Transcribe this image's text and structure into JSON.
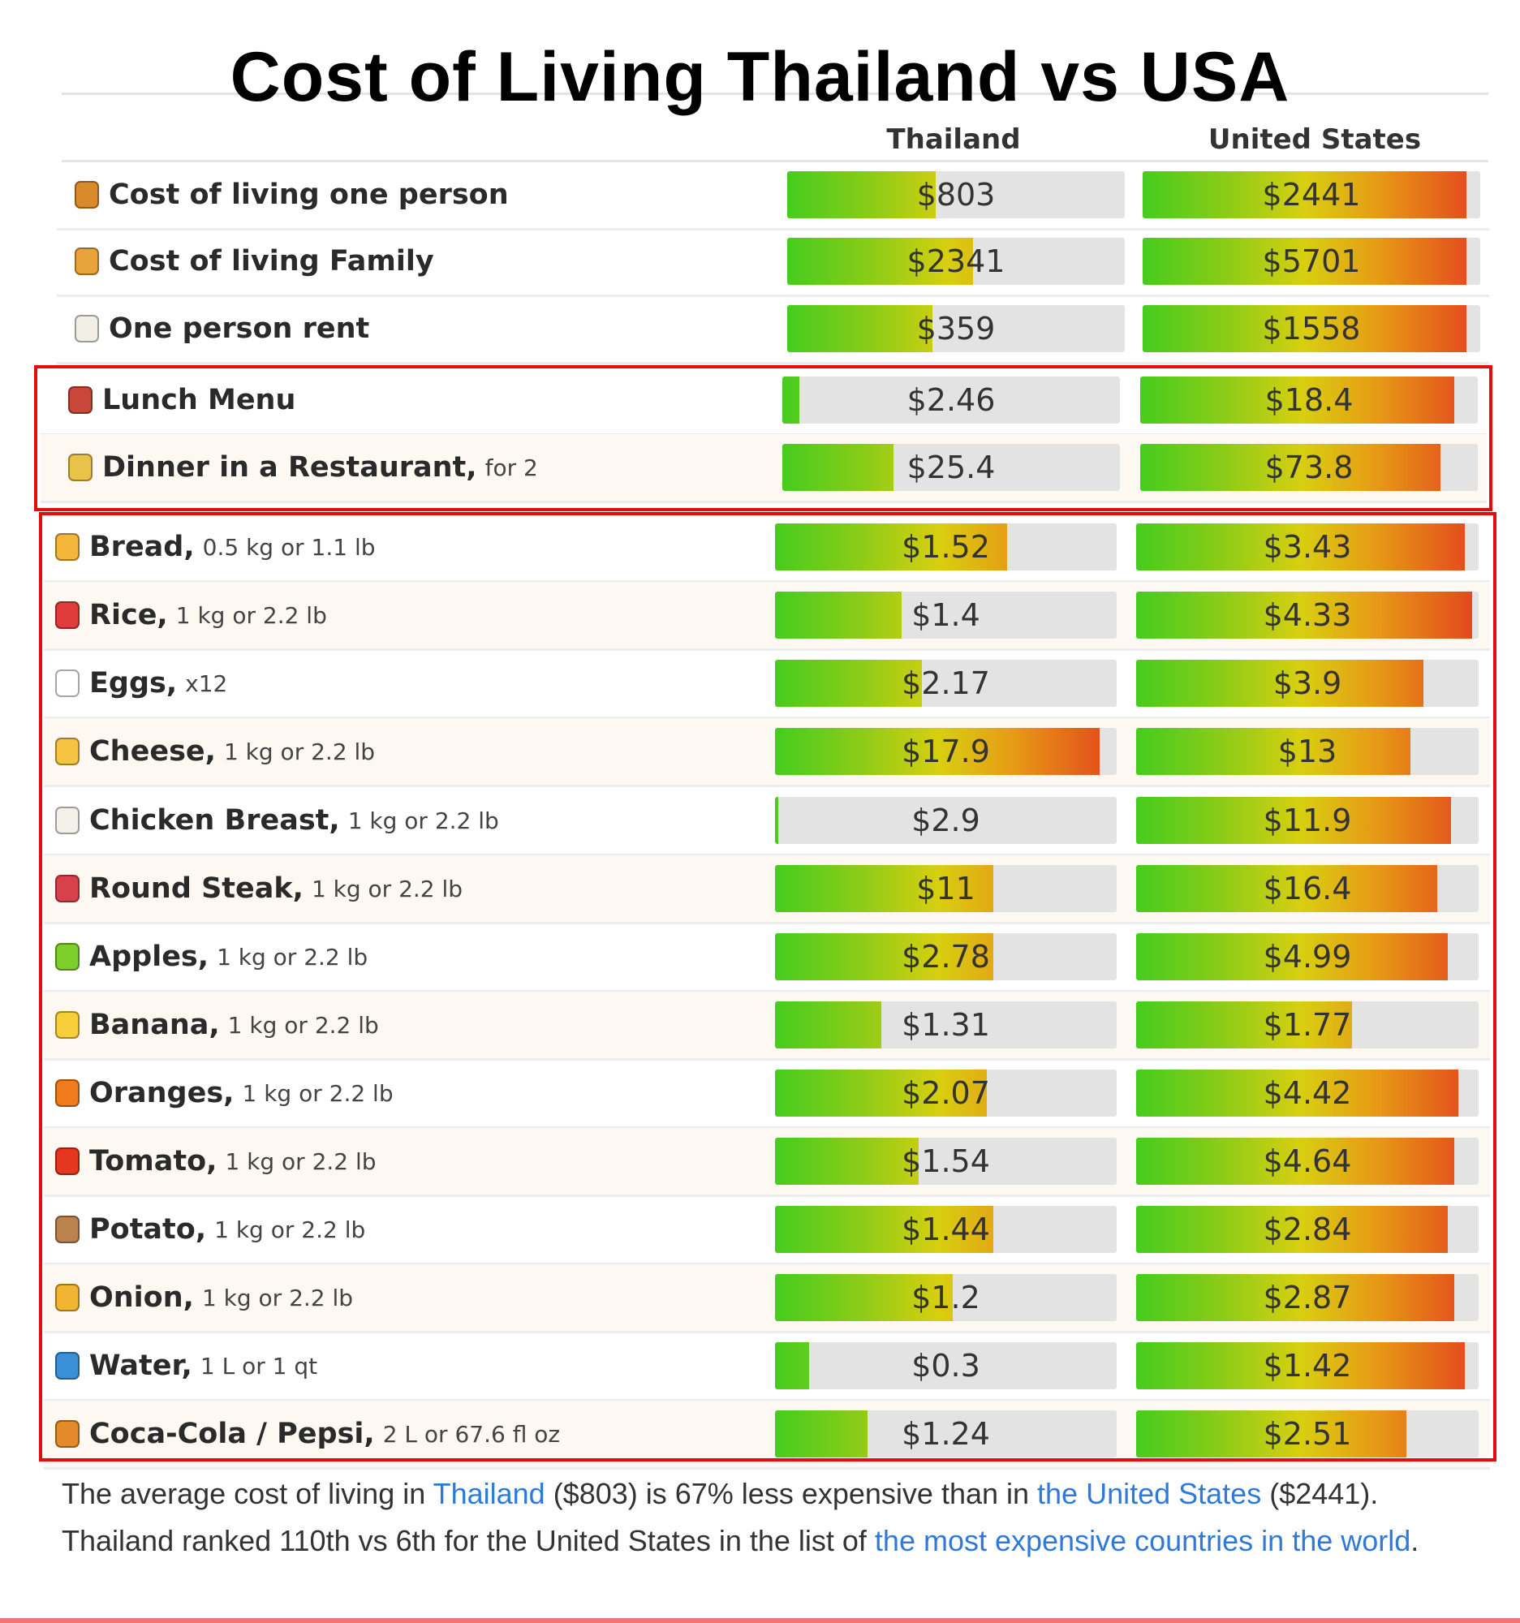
{
  "chart_data": {
    "type": "table",
    "title": "Cost of Living Thailand vs USA",
    "columns": [
      "Thailand",
      "United States"
    ],
    "colors": {
      "gradient_start": "#46cc1e",
      "gradient_mid": "#d8cf10",
      "gradient_end": "#e3431e",
      "track": "#e3e3e3",
      "highlight_box": "#e30d0d",
      "link": "#2f7ad8"
    },
    "rows": [
      {
        "label": "Cost of living one person",
        "unit": "",
        "icon": "person-icon",
        "icon_color": "#d98b2b",
        "th": "$803",
        "th_fill": 0.44,
        "us": "$2441",
        "us_fill": 0.96
      },
      {
        "label": "Cost of living Family",
        "unit": "",
        "icon": "family-icon",
        "icon_color": "#e8a33a",
        "th": "$2341",
        "th_fill": 0.55,
        "us": "$5701",
        "us_fill": 0.96
      },
      {
        "label": "One person rent",
        "unit": "",
        "icon": "house-icon",
        "icon_color": "#f2efe6",
        "th": "$359",
        "th_fill": 0.43,
        "us": "$1558",
        "us_fill": 0.96
      },
      {
        "label": "Lunch Menu",
        "unit": "",
        "icon": "bento-box-icon",
        "icon_color": "#c9473a",
        "th": "$2.46",
        "th_fill": 0.05,
        "us": "$18.4",
        "us_fill": 0.93
      },
      {
        "label": "Dinner in a Restaurant,",
        "unit": "for 2",
        "icon": "champagne-glasses-icon",
        "icon_color": "#e9c24a",
        "th": "$25.4",
        "th_fill": 0.33,
        "us": "$73.8",
        "us_fill": 0.89
      },
      {
        "label": "Bread,",
        "unit": "0.5 kg or 1.1 lb",
        "icon": "bread-icon",
        "icon_color": "#f3b63a",
        "th": "$1.52",
        "th_fill": 0.68,
        "us": "$3.43",
        "us_fill": 0.96
      },
      {
        "label": "Rice,",
        "unit": "1 kg or 2.2 lb",
        "icon": "rice-bowl-icon",
        "icon_color": "#e23b3b",
        "th": "$1.4",
        "th_fill": 0.37,
        "us": "$4.33",
        "us_fill": 0.98
      },
      {
        "label": "Eggs,",
        "unit": "x12",
        "icon": "egg-icon",
        "icon_color": "#ffffff",
        "th": "$2.17",
        "th_fill": 0.43,
        "us": "$3.9",
        "us_fill": 0.84
      },
      {
        "label": "Cheese,",
        "unit": "1 kg or 2.2 lb",
        "icon": "cheese-icon",
        "icon_color": "#f6c343",
        "th": "$17.9",
        "th_fill": 0.95,
        "us": "$13",
        "us_fill": 0.8
      },
      {
        "label": "Chicken Breast,",
        "unit": "1 kg or 2.2 lb",
        "icon": "chicken-icon",
        "icon_color": "#f3f0ea",
        "th": "$2.9",
        "th_fill": 0.01,
        "us": "$11.9",
        "us_fill": 0.92
      },
      {
        "label": "Round Steak,",
        "unit": "1 kg or 2.2 lb",
        "icon": "steak-icon",
        "icon_color": "#d9414a",
        "th": "$11",
        "th_fill": 0.64,
        "us": "$16.4",
        "us_fill": 0.88
      },
      {
        "label": "Apples,",
        "unit": "1 kg or 2.2 lb",
        "icon": "green-apple-icon",
        "icon_color": "#7fcf2c",
        "th": "$2.78",
        "th_fill": 0.64,
        "us": "$4.99",
        "us_fill": 0.91
      },
      {
        "label": "Banana,",
        "unit": "1 kg or 2.2 lb",
        "icon": "banana-icon",
        "icon_color": "#f6cf3b",
        "th": "$1.31",
        "th_fill": 0.31,
        "us": "$1.77",
        "us_fill": 0.63
      },
      {
        "label": "Oranges,",
        "unit": "1 kg or 2.2 lb",
        "icon": "orange-icon",
        "icon_color": "#f07b1d",
        "th": "$2.07",
        "th_fill": 0.62,
        "us": "$4.42",
        "us_fill": 0.94
      },
      {
        "label": "Tomato,",
        "unit": "1 kg or 2.2 lb",
        "icon": "tomato-icon",
        "icon_color": "#e5361f",
        "th": "$1.54",
        "th_fill": 0.42,
        "us": "$4.64",
        "us_fill": 0.93
      },
      {
        "label": "Potato,",
        "unit": "1 kg or 2.2 lb",
        "icon": "potato-icon",
        "icon_color": "#b9824f",
        "th": "$1.44",
        "th_fill": 0.64,
        "us": "$2.84",
        "us_fill": 0.91
      },
      {
        "label": "Onion,",
        "unit": "1 kg or 2.2 lb",
        "icon": "onion-icon",
        "icon_color": "#f2b531",
        "th": "$1.2",
        "th_fill": 0.52,
        "us": "$2.87",
        "us_fill": 0.93
      },
      {
        "label": "Water,",
        "unit": "1 L or 1 qt",
        "icon": "water-wave-icon",
        "icon_color": "#3a8fd8",
        "th": "$0.3",
        "th_fill": 0.1,
        "us": "$1.42",
        "us_fill": 0.96
      },
      {
        "label": "Coca-Cola / Pepsi,",
        "unit": "2 L or 67.6 fl oz",
        "icon": "tropical-drink-icon",
        "icon_color": "#e48a2a",
        "th": "$1.24",
        "th_fill": 0.27,
        "us": "$2.51",
        "us_fill": 0.79
      }
    ]
  },
  "summary": {
    "t1": "The average cost of living in ",
    "link_thailand": "Thailand",
    "t2": " ($803) is 67% less expensive than in ",
    "link_us": "the United States",
    "t3": " ($2441). Thailand ranked 110th vs 6th for the United States in the list of ",
    "link_list": "the most expensive countries in the world",
    "t4": "."
  }
}
